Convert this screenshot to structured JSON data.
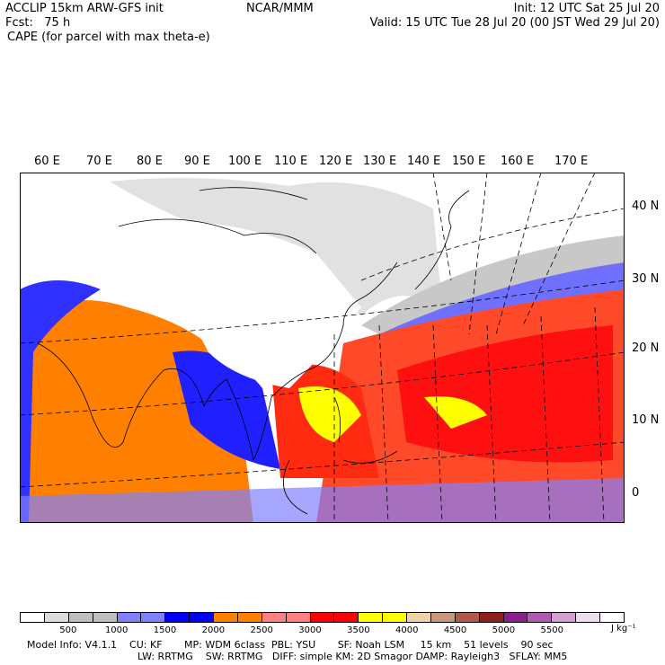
{
  "header": {
    "model": "ACCLIP 15km ARW-GFS init",
    "org": "NCAR/MMM",
    "init": "Init: 12 UTC Sat 25 Jul 20",
    "fcst": "Fcst:   75 h",
    "valid": "Valid: 15 UTC Tue 28 Jul 20 (00 JST Wed 29 Jul 20)",
    "field": "CAPE (for parcel with max theta-e)"
  },
  "map": {
    "lon_labels": [
      "60 E",
      "70 E",
      "80 E",
      "90 E",
      "100 E",
      "110 E",
      "120 E",
      "130 E",
      "140 E",
      "150 E",
      "160 E",
      "170 E"
    ],
    "lat_labels": [
      "40 N",
      "30 N",
      "20 N",
      "10 N",
      "0"
    ]
  },
  "colorbar": {
    "colors": [
      "#ffffff",
      "#dcdcdc",
      "#bebebe",
      "#bebebe",
      "#8080ff",
      "#8080ff",
      "#0000ff",
      "#0000ff",
      "#ff8000",
      "#ff8000",
      "#ff8080",
      "#ff8080",
      "#ff0000",
      "#ff0000",
      "#ffff00",
      "#ffff00",
      "#f0d2a8",
      "#c89678",
      "#b05a4a",
      "#8c1e1e",
      "#8c1e8c",
      "#b05ab0",
      "#d2a0d2",
      "#f0dcf0",
      "#ffffff"
    ],
    "labels": [
      "500",
      "1000",
      "1500",
      "2000",
      "2500",
      "3000",
      "3500",
      "4000",
      "4500",
      "5000",
      "5500"
    ],
    "units": "J kg⁻¹"
  },
  "footer": {
    "line1": "Model Info: V4.1.1    CU: KF       MP: WDM 6class  PBL: YSU       SF: Noah LSM     15 km    51 levels    90 sec",
    "line2": "LW: RRTMG    SW: RRTMG   DIFF: simple KM: 2D Smagor DAMP: Rayleigh3   SFLAY: MM5"
  }
}
